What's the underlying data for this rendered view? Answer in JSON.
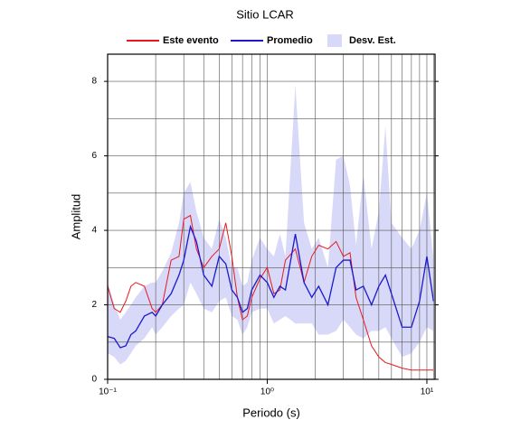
{
  "chart_data": {
    "type": "line",
    "title": "Sitio LCAR",
    "xlabel": "Periodo (s)",
    "ylabel": "Amplitud",
    "xscale": "log",
    "grid": true,
    "legend": "top",
    "xlim": [
      0.1,
      11.25
    ],
    "ylim": [
      0,
      8.73
    ],
    "xticks": [
      {
        "value": 0.1,
        "label": "10⁻¹"
      },
      {
        "value": 1,
        "label": "10⁰"
      },
      {
        "value": 10,
        "label": "10¹"
      }
    ],
    "x_minor_ticks": [
      0.2,
      0.3,
      0.4,
      0.5,
      0.6,
      0.7,
      0.8,
      0.9,
      2,
      3,
      4,
      5,
      6,
      7,
      8,
      9,
      11
    ],
    "yticks": [
      0,
      2,
      4,
      6,
      8
    ],
    "y_minor_ticks": [
      1,
      3,
      5,
      7
    ],
    "x": [
      0.1,
      0.11,
      0.12,
      0.13,
      0.14,
      0.15,
      0.17,
      0.19,
      0.2,
      0.22,
      0.25,
      0.28,
      0.3,
      0.33,
      0.36,
      0.4,
      0.45,
      0.5,
      0.55,
      0.6,
      0.65,
      0.7,
      0.75,
      0.8,
      0.9,
      1.0,
      1.1,
      1.2,
      1.3,
      1.5,
      1.7,
      1.9,
      2.1,
      2.4,
      2.7,
      3.0,
      3.3,
      3.6,
      4.0,
      4.5,
      5.0,
      5.5,
      6.0,
      7.0,
      8.0,
      9.0,
      10,
      11
    ],
    "band": {
      "name": "Desv. Est.",
      "color": "#d8d8f8",
      "upper": [
        2.6,
        2.0,
        1.6,
        1.8,
        2.0,
        2.2,
        2.5,
        2.6,
        2.6,
        2.9,
        3.4,
        4.2,
        5.0,
        5.3,
        4.5,
        3.8,
        3.5,
        4.3,
        3.8,
        3.0,
        3.0,
        2.5,
        2.6,
        3.2,
        3.8,
        3.5,
        3.3,
        3.9,
        3.3,
        7.9,
        4.2,
        3.5,
        3.8,
        3.0,
        5.9,
        6.0,
        5.2,
        3.6,
        5.5,
        3.5,
        4.5,
        6.8,
        4.2,
        3.8,
        3.5,
        4.0,
        5.0,
        3.2
      ],
      "lower": [
        0.7,
        0.6,
        0.4,
        0.5,
        0.7,
        0.9,
        1.1,
        1.4,
        1.2,
        1.4,
        1.7,
        1.9,
        2.0,
        2.6,
        2.3,
        1.9,
        1.8,
        2.1,
        2.2,
        1.7,
        1.6,
        1.2,
        1.4,
        1.8,
        1.9,
        1.9,
        1.5,
        1.6,
        1.7,
        1.5,
        1.5,
        1.5,
        1.2,
        1.2,
        1.3,
        1.6,
        1.4,
        1.2,
        1.1,
        1.3,
        1.3,
        1.4,
        1.1,
        0.6,
        0.7,
        1.0,
        1.4,
        1.3
      ]
    },
    "series": [
      {
        "name": "Este evento",
        "color": "#e8191e",
        "values": [
          2.5,
          1.9,
          1.8,
          2.1,
          2.5,
          2.6,
          2.5,
          1.9,
          1.8,
          2.0,
          3.2,
          3.3,
          4.3,
          4.4,
          3.5,
          3.0,
          3.3,
          3.5,
          4.2,
          3.3,
          2.2,
          1.6,
          1.7,
          2.2,
          2.7,
          3.0,
          2.3,
          2.4,
          3.2,
          3.5,
          2.6,
          3.3,
          3.6,
          3.5,
          3.7,
          3.3,
          3.4,
          2.2,
          1.6,
          0.9,
          0.6,
          0.45,
          0.4,
          0.3,
          0.25,
          0.25,
          0.25,
          0.25
        ]
      },
      {
        "name": "Promedio",
        "color": "#1a1acc",
        "values": [
          1.15,
          1.1,
          0.85,
          0.9,
          1.2,
          1.3,
          1.7,
          1.8,
          1.7,
          2.0,
          2.3,
          2.8,
          3.2,
          4.1,
          3.7,
          2.8,
          2.5,
          3.3,
          3.1,
          2.4,
          2.2,
          1.8,
          1.9,
          2.4,
          2.8,
          2.6,
          2.2,
          2.5,
          2.4,
          3.9,
          2.6,
          2.2,
          2.5,
          2.0,
          3.0,
          3.2,
          3.2,
          2.4,
          2.5,
          2.0,
          2.5,
          2.8,
          2.3,
          1.4,
          1.4,
          2.1,
          3.3,
          2.1
        ]
      }
    ]
  }
}
